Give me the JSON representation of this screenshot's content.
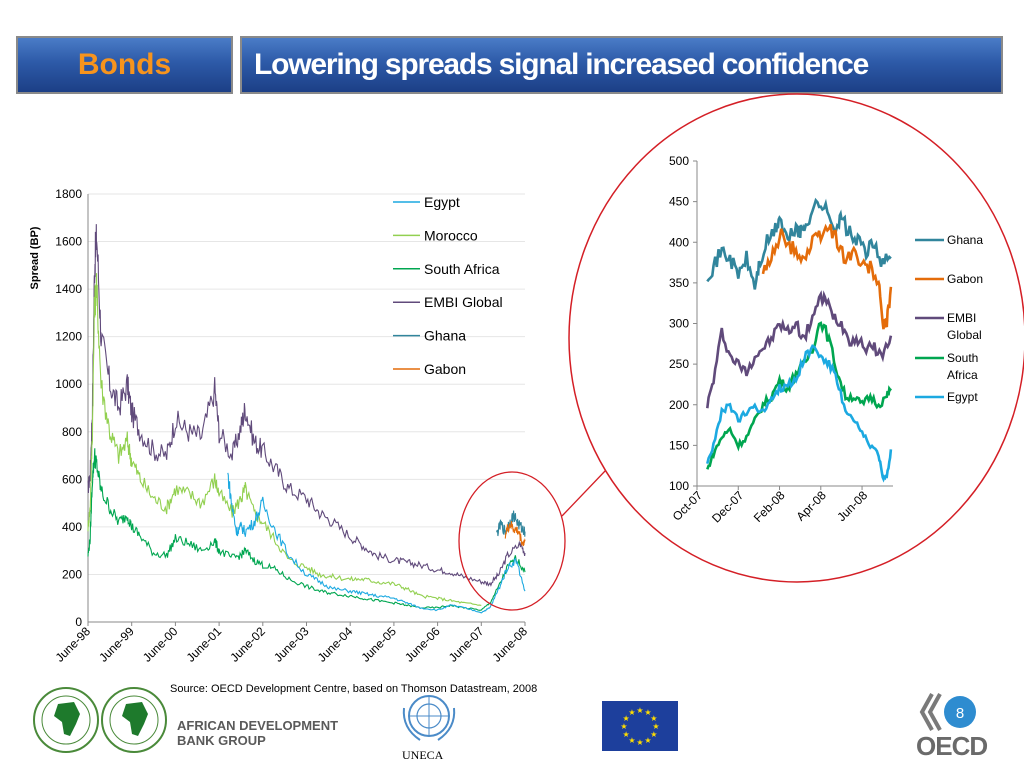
{
  "header": {
    "section": "Bonds",
    "title": "Lowering spreads signal increased confidence"
  },
  "colors": {
    "egypt": "#1ca9e1",
    "morocco": "#92d050",
    "south_africa": "#00a650",
    "embi": "#604a7b",
    "ghana": "#31859c",
    "gabon": "#e46c0a",
    "zoom_circle": "#d41f26",
    "header_blue": "#2d5aa8",
    "header_orange": "#f7941d"
  },
  "chart_data": [
    {
      "type": "line",
      "title": "",
      "xlabel": "",
      "ylabel": "Spread (BP)",
      "ylim": [
        0,
        1800
      ],
      "yticks": [
        "0",
        "200",
        "400",
        "600",
        "800",
        "1000",
        "1200",
        "1400",
        "1600",
        "1800"
      ],
      "categories": [
        "June-98",
        "June-99",
        "June-00",
        "June-01",
        "June-02",
        "June-03",
        "June-04",
        "June-05",
        "June-06",
        "June-07",
        "June-08"
      ],
      "grid": true,
      "legend": "top-right",
      "legend_entries": [
        "Egypt",
        "Morocco",
        "South Africa",
        "EMBI Global",
        "Ghana",
        "Gabon"
      ],
      "series": [
        {
          "name": "EMBI Global",
          "color": "#604a7b",
          "x": [
            0,
            0.05,
            0.1,
            0.15,
            0.2,
            0.3,
            0.5,
            0.7,
            0.9,
            1.0,
            1.2,
            1.5,
            1.8,
            2.0,
            2.3,
            2.6,
            2.9,
            3.0,
            3.3,
            3.5,
            3.6,
            3.8,
            4.0,
            4.3,
            4.6,
            5.0,
            5.3,
            5.6,
            6.0,
            6.3,
            6.6,
            7.0,
            7.3,
            7.6,
            8.0,
            8.3,
            8.6,
            9.0,
            9.2,
            9.4,
            9.6,
            9.9,
            10.0
          ],
          "values": [
            560,
            620,
            900,
            1500,
            1620,
            1200,
            1000,
            900,
            1000,
            880,
            800,
            720,
            700,
            850,
            800,
            780,
            980,
            800,
            700,
            820,
            900,
            760,
            720,
            640,
            560,
            520,
            460,
            420,
            360,
            320,
            280,
            260,
            250,
            240,
            220,
            210,
            190,
            170,
            160,
            200,
            280,
            330,
            290
          ]
        },
        {
          "name": "Morocco",
          "color": "#92d050",
          "x": [
            0,
            0.05,
            0.1,
            0.15,
            0.2,
            0.3,
            0.5,
            0.7,
            0.9,
            1.0,
            1.2,
            1.5,
            1.8,
            2.0,
            2.3,
            2.6,
            2.9,
            3.0,
            3.3,
            3.5,
            3.6,
            3.8,
            4.0,
            4.3,
            4.6,
            5.0,
            5.3,
            5.6,
            6.0,
            6.3,
            6.6,
            7.0,
            7.3,
            7.6,
            8.0,
            8.3,
            8.6,
            9.0
          ],
          "values": [
            400,
            480,
            800,
            1350,
            1400,
            1000,
            800,
            700,
            760,
            680,
            600,
            520,
            480,
            560,
            540,
            500,
            600,
            540,
            460,
            520,
            560,
            460,
            420,
            340,
            260,
            230,
            200,
            190,
            180,
            180,
            170,
            160,
            140,
            110,
            100,
            90,
            80,
            70
          ]
        },
        {
          "name": "South Africa",
          "color": "#00a650",
          "x": [
            0,
            0.05,
            0.1,
            0.15,
            0.2,
            0.3,
            0.5,
            0.7,
            0.9,
            1.0,
            1.2,
            1.5,
            1.8,
            2.0,
            2.3,
            2.6,
            2.9,
            3.0,
            3.3,
            3.5,
            3.6,
            3.8,
            4.0,
            4.3,
            4.6,
            5.0,
            5.3,
            5.6,
            6.0,
            6.3,
            6.6,
            7.0,
            7.3,
            7.6,
            8.0,
            8.3,
            8.6,
            9.0,
            9.2,
            9.4,
            9.6,
            9.8,
            10.0
          ],
          "values": [
            280,
            350,
            600,
            700,
            660,
            550,
            480,
            420,
            450,
            400,
            360,
            290,
            280,
            350,
            330,
            300,
            340,
            300,
            270,
            280,
            300,
            260,
            240,
            220,
            180,
            150,
            130,
            120,
            110,
            100,
            90,
            80,
            70,
            60,
            60,
            70,
            60,
            50,
            80,
            150,
            230,
            270,
            210
          ]
        },
        {
          "name": "Egypt",
          "color": "#1ca9e1",
          "x": [
            3.2,
            3.3,
            3.4,
            3.5,
            3.6,
            3.8,
            4.0,
            4.3,
            4.6,
            5.0,
            5.3,
            5.6,
            6.0,
            6.3,
            6.6,
            7.0,
            7.3,
            7.6,
            8.0,
            8.3,
            8.6,
            9.0,
            9.2,
            9.4,
            9.6,
            9.8,
            10.0
          ],
          "values": [
            620,
            480,
            380,
            400,
            380,
            420,
            500,
            380,
            280,
            200,
            170,
            140,
            130,
            120,
            110,
            100,
            80,
            60,
            50,
            70,
            60,
            40,
            60,
            140,
            230,
            260,
            130
          ]
        },
        {
          "name": "Ghana",
          "color": "#31859c",
          "x": [
            9.35,
            9.45,
            9.55,
            9.65,
            9.75,
            9.85,
            9.95,
            10.0
          ],
          "values": [
            370,
            410,
            380,
            420,
            450,
            410,
            390,
            380
          ]
        },
        {
          "name": "Gabon",
          "color": "#e46c0a",
          "x": [
            9.55,
            9.65,
            9.75,
            9.85,
            9.95,
            10.0
          ],
          "values": [
            370,
            410,
            390,
            380,
            330,
            340
          ]
        }
      ]
    },
    {
      "type": "line",
      "title": "",
      "xlabel": "",
      "ylabel": "",
      "ylim": [
        100,
        500
      ],
      "yticks": [
        "100",
        "150",
        "200",
        "250",
        "300",
        "350",
        "400",
        "450",
        "500"
      ],
      "categories": [
        "Oct-07",
        "Dec-07",
        "Feb-08",
        "Apr-08",
        "Jun-08"
      ],
      "legend": "right",
      "legend_entries": [
        "Ghana",
        "Gabon",
        "EMBI Global",
        "South Africa",
        "Egypt"
      ],
      "series": [
        {
          "name": "Ghana",
          "color": "#31859c",
          "x": [
            0.25,
            0.4,
            0.6,
            0.8,
            1.0,
            1.2,
            1.4,
            1.5,
            1.7,
            1.9,
            2.0,
            2.2,
            2.4,
            2.5,
            2.6,
            2.8,
            3.0,
            3.2,
            3.4,
            3.5,
            3.7,
            3.9,
            4.1,
            4.3,
            4.5,
            4.7
          ],
          "values": [
            360,
            370,
            390,
            380,
            360,
            380,
            345,
            370,
            400,
            415,
            430,
            400,
            420,
            410,
            420,
            440,
            450,
            430,
            420,
            430,
            410,
            400,
            390,
            395,
            375,
            380
          ]
        },
        {
          "name": "Gabon",
          "color": "#e46c0a",
          "x": [
            1.6,
            1.8,
            2.0,
            2.2,
            2.4,
            2.6,
            2.8,
            3.0,
            3.2,
            3.4,
            3.6,
            3.8,
            4.0,
            4.2,
            4.4,
            4.5,
            4.6,
            4.7
          ],
          "values": [
            360,
            380,
            410,
            395,
            390,
            380,
            400,
            410,
            420,
            400,
            380,
            390,
            370,
            370,
            350,
            300,
            300,
            345
          ]
        },
        {
          "name": "EMBI Global",
          "color": "#604a7b",
          "x": [
            0.25,
            0.4,
            0.6,
            0.8,
            1.0,
            1.2,
            1.4,
            1.6,
            1.8,
            2.0,
            2.2,
            2.4,
            2.6,
            2.8,
            3.0,
            3.1,
            3.3,
            3.5,
            3.7,
            3.9,
            4.1,
            4.3,
            4.5,
            4.7
          ],
          "values": [
            200,
            230,
            290,
            260,
            250,
            240,
            260,
            270,
            280,
            300,
            290,
            300,
            280,
            310,
            330,
            330,
            310,
            300,
            280,
            280,
            270,
            270,
            260,
            285
          ]
        },
        {
          "name": "South Africa",
          "color": "#00a650",
          "x": [
            0.25,
            0.4,
            0.6,
            0.8,
            1.0,
            1.2,
            1.4,
            1.6,
            1.8,
            2.0,
            2.2,
            2.4,
            2.6,
            2.8,
            3.0,
            3.2,
            3.4,
            3.6,
            3.8,
            4.0,
            4.2,
            4.4,
            4.6,
            4.7
          ],
          "values": [
            120,
            140,
            160,
            170,
            150,
            160,
            180,
            200,
            210,
            230,
            220,
            240,
            250,
            270,
            305,
            280,
            240,
            210,
            210,
            200,
            210,
            200,
            210,
            220
          ]
        },
        {
          "name": "Egypt",
          "color": "#1ca9e1",
          "x": [
            0.25,
            0.4,
            0.6,
            0.8,
            1.0,
            1.2,
            1.4,
            1.6,
            1.8,
            2.0,
            2.2,
            2.4,
            2.6,
            2.8,
            3.0,
            3.2,
            3.4,
            3.6,
            3.8,
            4.0,
            4.2,
            4.4,
            4.5,
            4.6,
            4.7
          ],
          "values": [
            130,
            150,
            190,
            200,
            180,
            190,
            200,
            190,
            210,
            220,
            225,
            230,
            260,
            270,
            260,
            250,
            230,
            190,
            180,
            165,
            150,
            140,
            110,
            110,
            145
          ]
        }
      ]
    }
  ],
  "footer": {
    "source": "Source: OECD Development Centre, based on Thomson Datastream, 2008",
    "afdb_line1": "AFRICAN DEVELOPMENT",
    "afdb_line2": "BANK GROUP",
    "uneca": "UNECA",
    "oecd": "OECD",
    "page_number": "8"
  }
}
